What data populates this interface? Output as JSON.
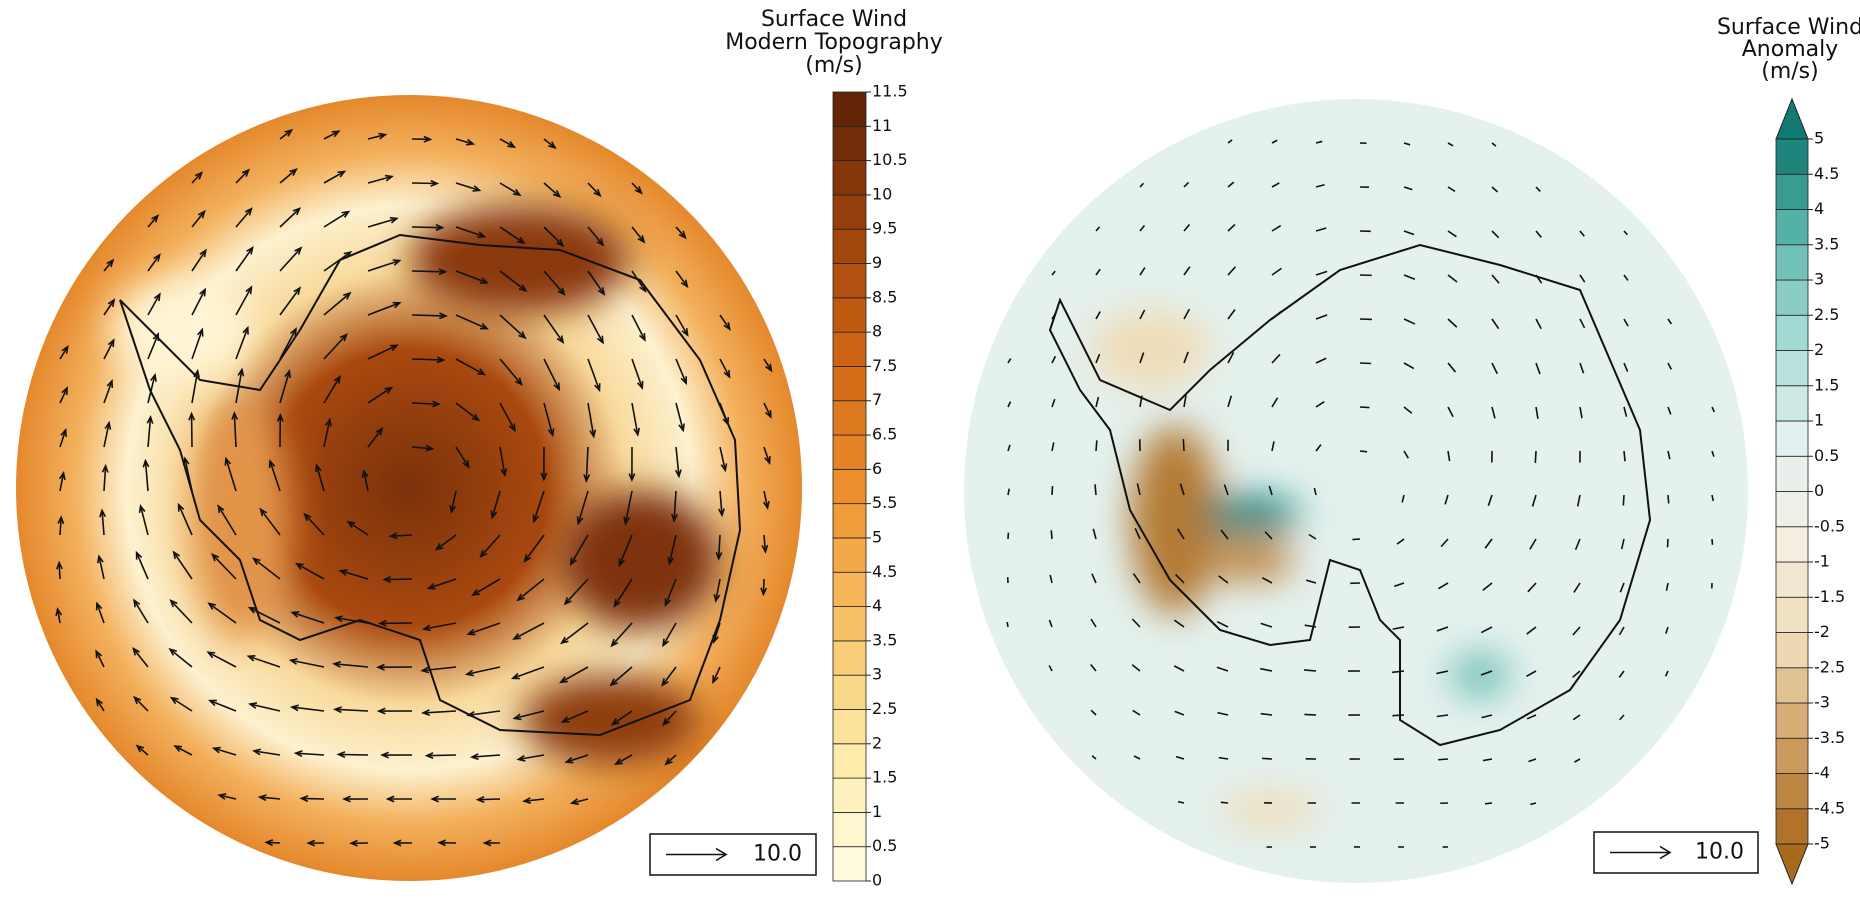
{
  "chart_data": [
    {
      "type": "map",
      "title_lines": [
        "Surface Wind",
        "Modern Topography",
        "(m/s)"
      ],
      "colorbar": {
        "lim": [
          0,
          11.5
        ],
        "ticks": [
          0,
          0.5,
          1,
          1.5,
          2,
          2.5,
          3,
          3.5,
          4,
          4.5,
          5,
          5.5,
          6,
          6.5,
          7,
          7.5,
          8,
          8.5,
          9,
          9.5,
          10,
          10.5,
          11,
          11.5
        ],
        "colormap": [
          "#fffde8",
          "#fdeaa6",
          "#f7c064",
          "#ec8f2c",
          "#cf6414",
          "#9a420c",
          "#5c2007"
        ],
        "extend": false
      },
      "reference_vector": {
        "value": 10,
        "label": "10.0"
      }
    },
    {
      "type": "map",
      "title_lines": [
        "Surface Wind",
        "Anomaly",
        "(m/s)"
      ],
      "colorbar": {
        "lim": [
          -5,
          5
        ],
        "ticks": [
          -5,
          -4.5,
          -4,
          -3.5,
          -3,
          -2.5,
          -2,
          -1.5,
          -1,
          -0.5,
          0,
          0.5,
          1,
          1.5,
          2,
          2.5,
          3,
          3.5,
          4,
          4.5,
          5
        ],
        "colormap": [
          "#a86b1e",
          "#cfa162",
          "#efdcb7",
          "#f4efe2",
          "#e3f1f0",
          "#a9dcd6",
          "#5fb9ae",
          "#117a72"
        ],
        "extend": true
      },
      "reference_vector": {
        "value": 10,
        "label": "10.0"
      }
    }
  ]
}
